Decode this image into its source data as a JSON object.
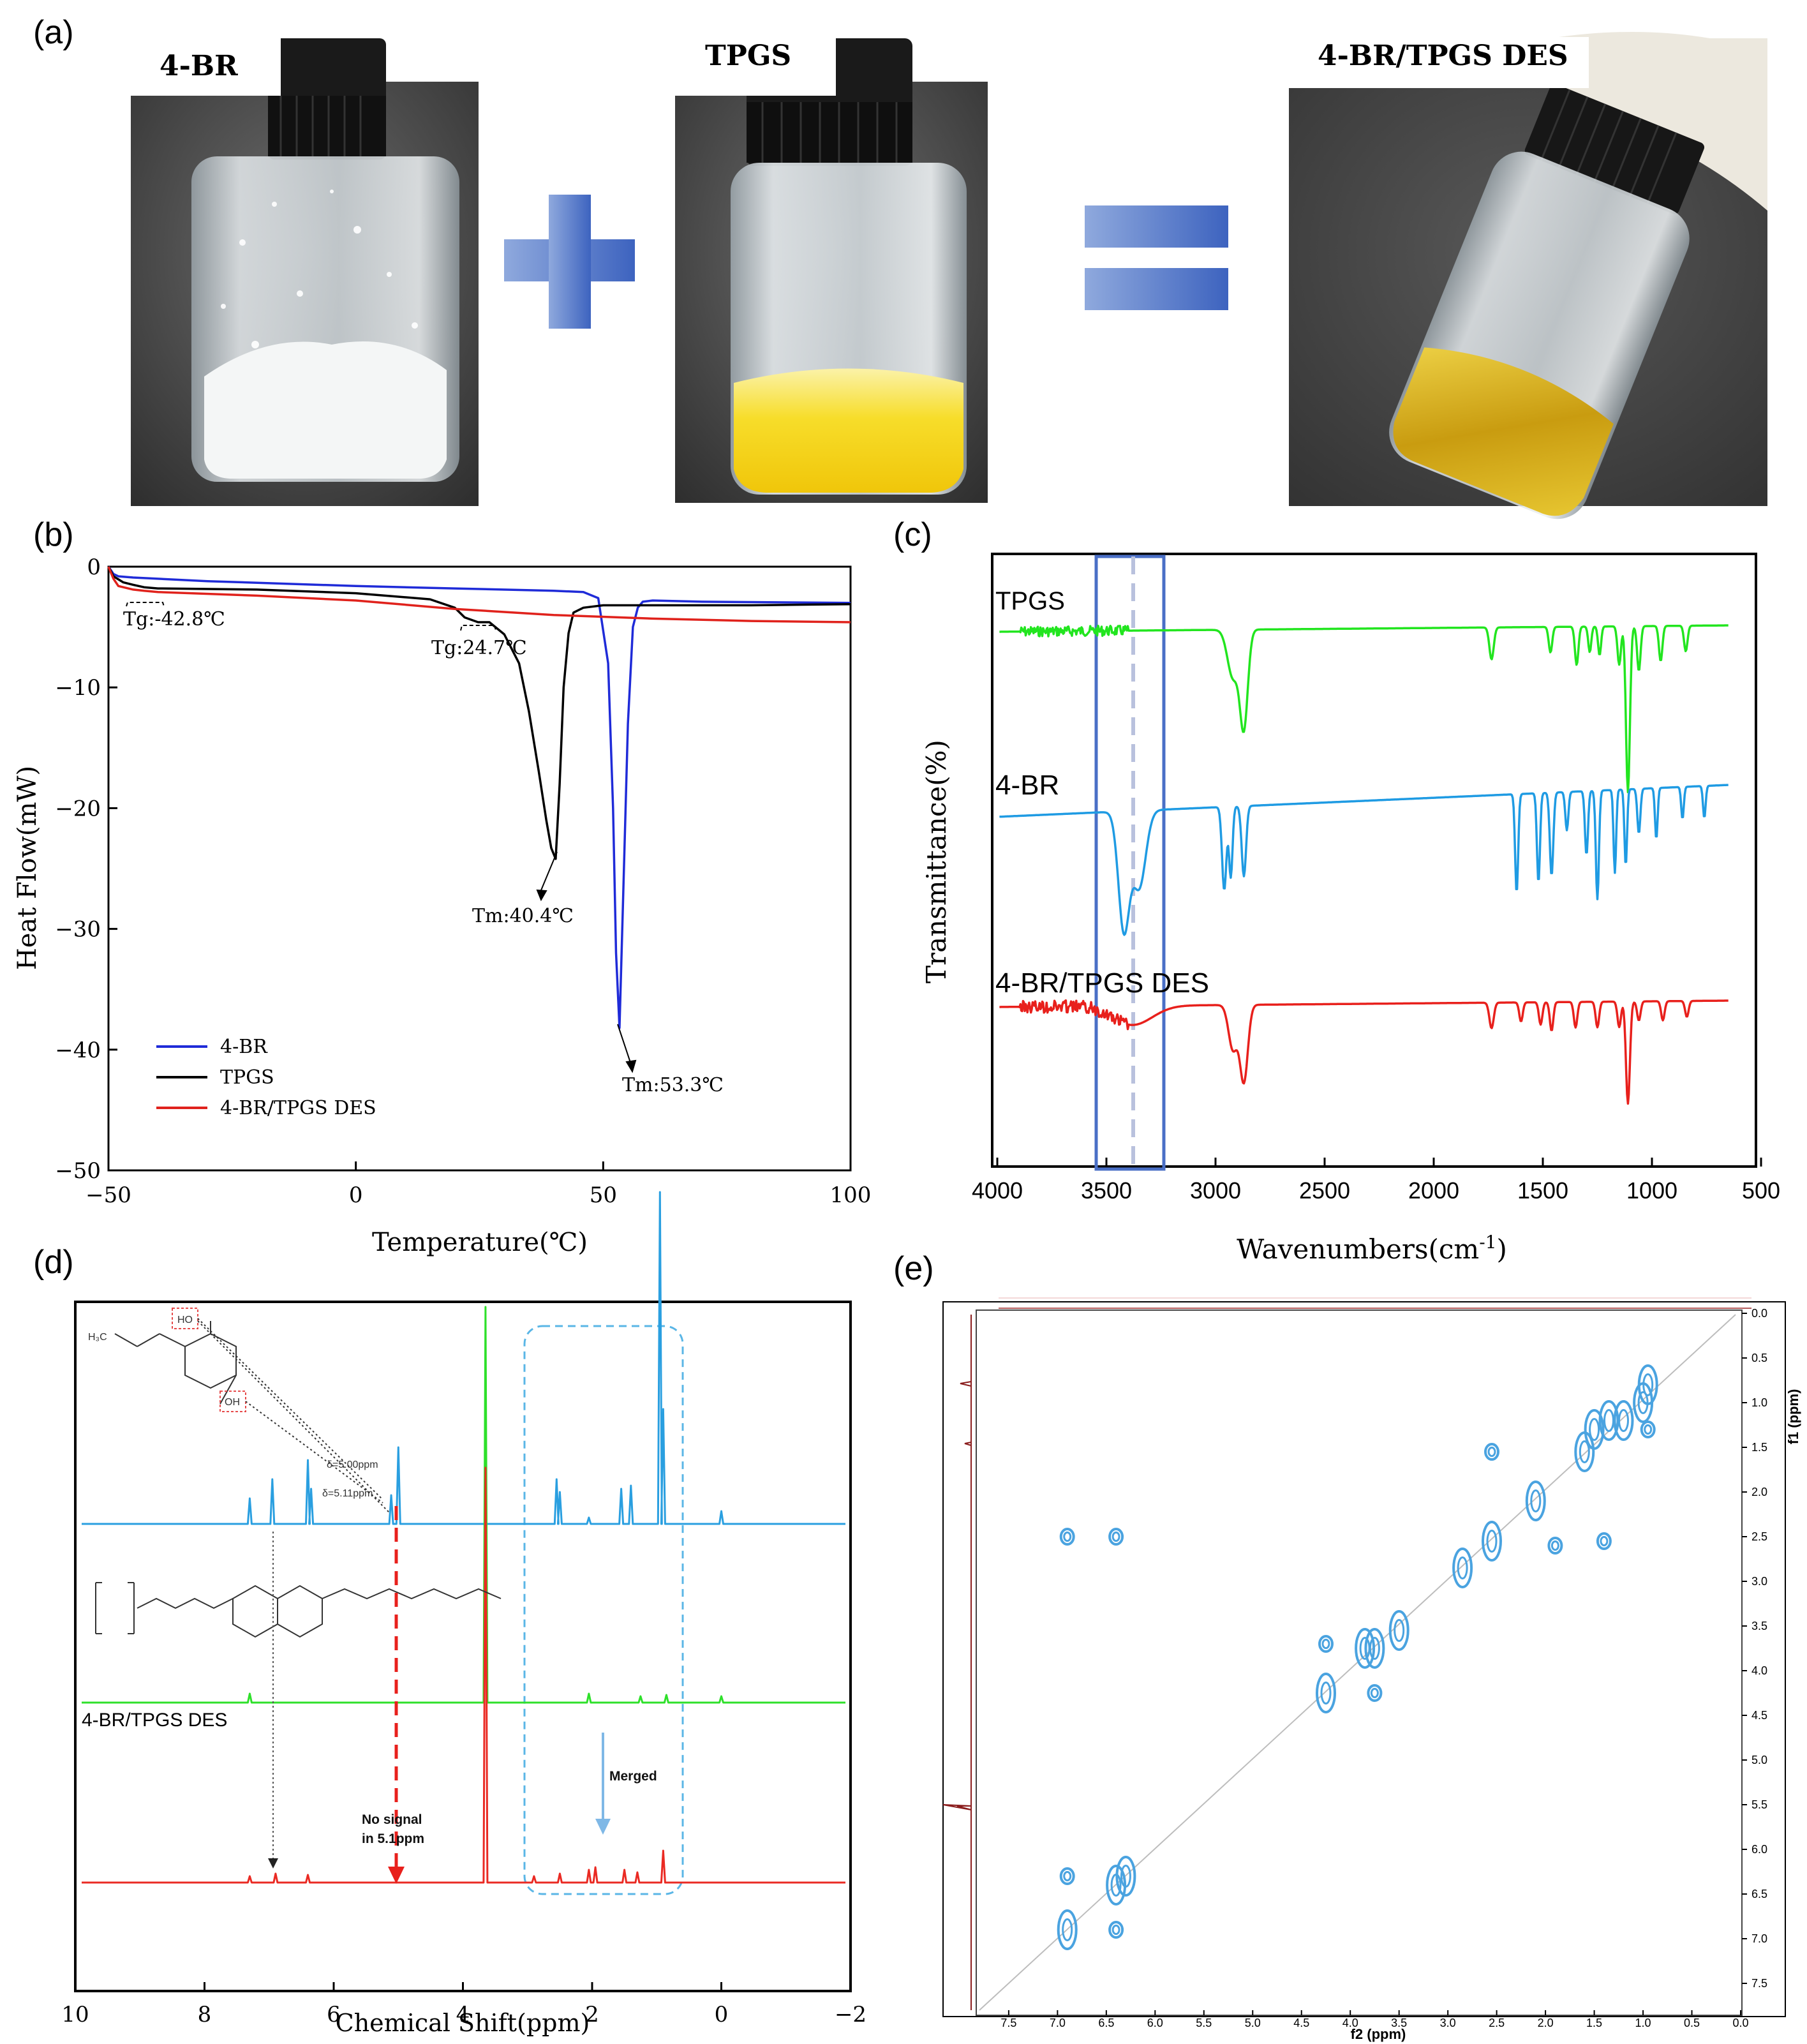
{
  "panel_labels": [
    "(a)",
    "(b)",
    "(c)",
    "(d)",
    "(e)"
  ],
  "panel_a": {
    "photos": [
      {
        "label": "4-BR",
        "content": "white powder"
      },
      {
        "label": "TPGS",
        "content": "yellow paste"
      },
      {
        "label": "4-BR/TPGS DES",
        "content": "yellow liquid"
      }
    ],
    "operators": [
      "plus",
      "equals"
    ],
    "colors": {
      "glass": "#d7dde0",
      "cap": "#1c1c1c",
      "powder": "#f3f4f4",
      "paste": "#f5d010",
      "liquid": "#d9b51a",
      "operator": "#4e73c4"
    }
  },
  "chart_data": [
    {
      "id": "b",
      "type": "line",
      "title": "",
      "xlabel": "Temperature(℃)",
      "ylabel": "Heat Flow(mW)",
      "xlim": [
        -50,
        100
      ],
      "ylim": [
        -50,
        0
      ],
      "xticks": [
        -50,
        0,
        50,
        100
      ],
      "yticks": [
        0,
        -10,
        -20,
        -30,
        -40,
        -50
      ],
      "legend": {
        "position": "bottom-left",
        "entries": [
          "4-BR",
          "TPGS",
          "4-BR/TPGS DES"
        ]
      },
      "series": [
        {
          "name": "4-BR",
          "color": "#1f2bd8",
          "x": [
            -50,
            -49,
            -48,
            -45,
            -30,
            0,
            20,
            40,
            46,
            49,
            51,
            52,
            52.6,
            53.3,
            54,
            55,
            56,
            57,
            58,
            60,
            70,
            100
          ],
          "y": [
            0,
            -0.6,
            -0.8,
            -0.9,
            -1.2,
            -1.6,
            -1.8,
            -2.0,
            -2.1,
            -2.6,
            -8,
            -20,
            -32,
            -38.2,
            -28,
            -13,
            -5,
            -3.4,
            -2.9,
            -2.8,
            -2.9,
            -3.0
          ]
        },
        {
          "name": "TPGS",
          "color": "#000000",
          "x": [
            -50,
            -49,
            -47,
            -45,
            -42.8,
            -40,
            -20,
            0,
            15,
            20,
            22,
            24.7,
            27,
            30,
            33,
            35,
            37,
            38.5,
            39.5,
            40.4,
            41.2,
            42,
            43,
            44,
            46,
            50,
            60,
            80,
            100
          ],
          "y": [
            0,
            -0.8,
            -1.3,
            -1.5,
            -1.7,
            -1.8,
            -1.9,
            -2.2,
            -2.7,
            -3.4,
            -4.2,
            -4.6,
            -4.6,
            -5.6,
            -8,
            -12,
            -17,
            -21,
            -23.3,
            -24.2,
            -18,
            -10,
            -5.5,
            -3.8,
            -3.4,
            -3.2,
            -3.2,
            -3.2,
            -3.1
          ]
        },
        {
          "name": "4-BR/TPGS DES",
          "color": "#e0221c",
          "x": [
            -50,
            -49,
            -48,
            -45,
            -42.8,
            -40,
            -20,
            0,
            20,
            40,
            60,
            80,
            100
          ],
          "y": [
            0,
            -1.0,
            -1.6,
            -1.9,
            -2.0,
            -2.1,
            -2.4,
            -2.8,
            -3.5,
            -4.0,
            -4.3,
            -4.5,
            -4.6
          ]
        }
      ],
      "annotations": [
        "Tg:-42.8℃",
        "Tg:24.7℃",
        "Tm:40.4℃",
        "Tm:53.3℃"
      ]
    },
    {
      "id": "c",
      "type": "line",
      "title": "",
      "xlabel": "Wavenumbers(cm-1)",
      "ylabel": "Transmittance(%)",
      "xlim": [
        4000,
        500
      ],
      "xticks": [
        4000,
        3500,
        3000,
        2500,
        2000,
        1500,
        1000,
        500
      ],
      "highlight": {
        "x_range": [
          3520,
          3260
        ],
        "dashed_line_at": 3380
      },
      "series": [
        {
          "name": "TPGS",
          "color": "#22e51f"
        },
        {
          "name": "4-BR",
          "color": "#1f9be3"
        },
        {
          "name": "4-BR/TPGS DES",
          "color": "#e8201c"
        }
      ]
    },
    {
      "id": "d",
      "type": "line",
      "title": "",
      "xlabel": "Chemical Shift(ppm)",
      "xlim": [
        10,
        -2
      ],
      "xticks": [
        10,
        8,
        6,
        4,
        2,
        0,
        -2
      ],
      "series": [
        {
          "name": "4-BR",
          "color": "#2a9fe0",
          "peaks_ppm": [
            7.3,
            6.95,
            6.4,
            6.35,
            5.11,
            5.0,
            2.55,
            2.5,
            2.05,
            1.55,
            1.4,
            0.95,
            0.9,
            0.0
          ]
        },
        {
          "name": "TPGS",
          "color": "#2ee02a",
          "peaks_ppm": [
            7.3,
            3.65,
            2.05,
            1.25,
            0.85,
            0.0
          ]
        },
        {
          "name": "4-BR/TPGS DES",
          "color": "#ea2a23",
          "peaks_ppm": [
            7.3,
            6.9,
            6.4,
            3.65,
            2.9,
            2.5,
            2.05,
            1.95,
            1.5,
            1.3,
            0.9
          ]
        }
      ],
      "annotations": [
        "δ=5.00ppm",
        "δ=5.11ppm",
        "No signal",
        "in 5.1ppm",
        "Merged",
        "4-BR/TPGS DES"
      ],
      "molecule_labels": [
        "HO",
        "OH",
        "H₃C"
      ]
    },
    {
      "id": "e",
      "type": "heatmap",
      "title": "",
      "xlabel": "f2 (ppm)",
      "ylabel": "f1 (ppm)",
      "xlim": [
        7.8,
        0.0
      ],
      "ylim": [
        0.0,
        7.8
      ],
      "xticks": [
        7.5,
        7.0,
        6.5,
        6.0,
        5.5,
        5.0,
        4.5,
        4.0,
        3.5,
        3.0,
        2.5,
        2.0,
        1.5,
        1.0,
        0.5,
        0.0
      ],
      "yticks": [
        0.0,
        0.5,
        1.0,
        1.5,
        2.0,
        2.5,
        3.0,
        3.5,
        4.0,
        4.5,
        5.0,
        5.5,
        6.0,
        6.5,
        7.0,
        7.5
      ],
      "cross_peaks": [
        [
          6.9,
          6.3
        ],
        [
          6.9,
          6.9
        ],
        [
          6.4,
          6.4
        ],
        [
          6.3,
          6.3
        ],
        [
          6.4,
          6.9
        ],
        [
          6.9,
          2.5
        ],
        [
          6.4,
          2.5
        ],
        [
          4.25,
          3.7
        ],
        [
          4.25,
          4.25
        ],
        [
          3.75,
          3.75
        ],
        [
          3.75,
          4.25
        ],
        [
          3.85,
          3.75
        ],
        [
          3.5,
          3.55
        ],
        [
          2.85,
          2.85
        ],
        [
          2.55,
          2.55
        ],
        [
          2.55,
          1.55
        ],
        [
          2.1,
          2.1
        ],
        [
          1.6,
          1.55
        ],
        [
          1.4,
          2.55
        ],
        [
          1.9,
          2.6
        ],
        [
          1.2,
          1.2
        ],
        [
          1.0,
          1.0
        ],
        [
          1.35,
          1.2
        ],
        [
          0.95,
          1.3
        ],
        [
          1.5,
          1.3
        ],
        [
          0.95,
          0.8
        ]
      ]
    }
  ]
}
